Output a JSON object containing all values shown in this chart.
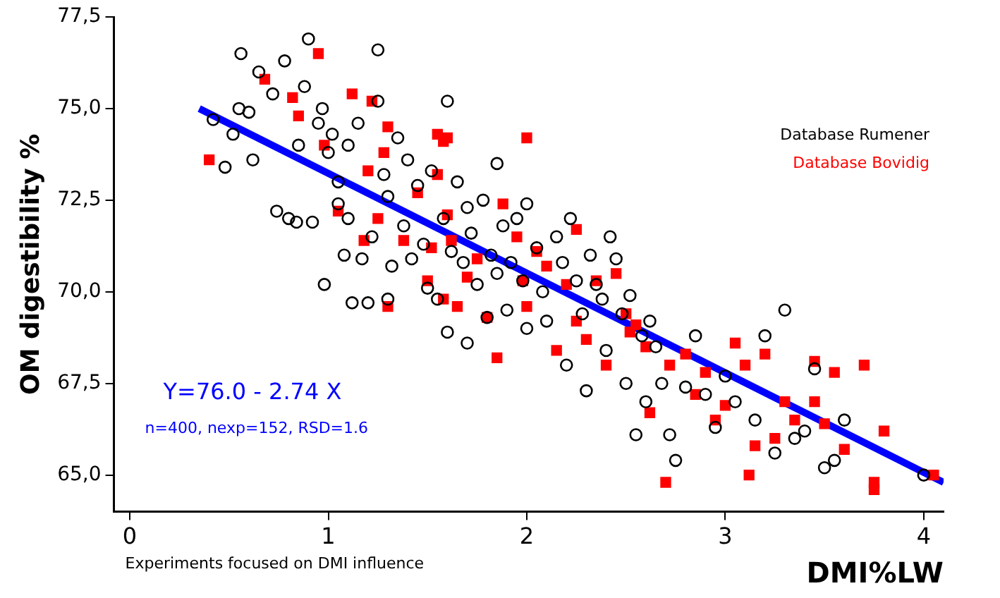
{
  "chart_data": {
    "type": "scatter",
    "xlabel": "DMI%LW",
    "ylabel": "OM digestibility %",
    "xlim": [
      -0.08,
      4.1
    ],
    "xticks": [
      0,
      1,
      2,
      3,
      4
    ],
    "ylim": [
      64.0,
      77.5
    ],
    "yticks": [
      {
        "value": 65,
        "label": "65,0"
      },
      {
        "value": 67.5,
        "label": "67,5"
      },
      {
        "value": 70,
        "label": "70,0"
      },
      {
        "value": 72.5,
        "label": "72,5"
      },
      {
        "value": 75,
        "label": "75,0"
      },
      {
        "value": 77.5,
        "label": "77,5"
      }
    ],
    "grid": false,
    "legend": "top right",
    "annotations": [
      "Y=76.0 - 2.74 X",
      "n=400, nexp=152, RSD=1.6",
      "Experiments focused on DMI influence"
    ],
    "series": [
      {
        "name": "Database Rumener",
        "color": "#000000",
        "marker": "circle",
        "x": [
          0.42,
          0.48,
          0.52,
          0.55,
          0.56,
          0.6,
          0.62,
          0.65,
          0.72,
          0.74,
          0.78,
          0.8,
          0.84,
          0.85,
          0.88,
          0.9,
          0.92,
          0.95,
          0.97,
          1.0,
          1.02,
          1.05,
          1.05,
          1.08,
          1.1,
          1.12,
          1.15,
          1.17,
          1.2,
          1.22,
          1.25,
          1.25,
          1.28,
          1.3,
          1.32,
          1.35,
          1.38,
          1.4,
          1.42,
          1.45,
          1.48,
          1.5,
          1.52,
          1.55,
          1.58,
          1.6,
          1.6,
          1.62,
          1.65,
          1.68,
          1.7,
          1.72,
          1.75,
          1.78,
          1.8,
          1.82,
          1.85,
          1.88,
          1.9,
          1.92,
          1.95,
          1.98,
          2.0,
          2.0,
          2.05,
          2.08,
          2.1,
          2.15,
          2.18,
          2.2,
          2.22,
          2.25,
          2.28,
          2.3,
          2.32,
          2.35,
          2.38,
          2.4,
          2.42,
          2.45,
          2.48,
          2.5,
          2.52,
          2.55,
          2.58,
          2.6,
          2.62,
          2.65,
          2.68,
          2.72,
          2.75,
          2.8,
          2.85,
          2.9,
          2.95,
          3.0,
          3.05,
          3.15,
          3.2,
          3.3,
          3.35,
          3.4,
          3.45,
          3.5,
          3.55,
          3.6,
          3.25,
          4.0,
          1.1,
          1.3,
          1.7,
          1.85,
          0.98
        ],
        "values": [
          74.7,
          73.4,
          74.3,
          75.0,
          76.5,
          74.9,
          73.6,
          76.0,
          75.4,
          72.2,
          76.3,
          72.0,
          71.9,
          74.0,
          75.6,
          76.9,
          71.9,
          74.6,
          75.0,
          73.8,
          74.3,
          72.4,
          73.0,
          71.0,
          72.0,
          69.7,
          74.6,
          70.9,
          69.7,
          71.5,
          76.6,
          75.2,
          73.2,
          72.6,
          70.7,
          74.2,
          71.8,
          73.6,
          70.9,
          72.9,
          71.3,
          70.1,
          73.3,
          69.8,
          72.0,
          75.2,
          68.9,
          71.1,
          73.0,
          70.8,
          68.6,
          71.6,
          70.2,
          72.5,
          69.3,
          71.0,
          70.5,
          71.8,
          69.5,
          70.8,
          72.0,
          70.3,
          69.0,
          72.4,
          71.2,
          70.0,
          69.2,
          71.5,
          70.8,
          68.0,
          72.0,
          70.3,
          69.4,
          67.3,
          71.0,
          70.2,
          69.8,
          68.4,
          71.5,
          70.9,
          69.4,
          67.5,
          69.9,
          66.1,
          68.8,
          67.0,
          69.2,
          68.5,
          67.5,
          66.1,
          65.4,
          67.4,
          68.8,
          67.2,
          66.3,
          67.7,
          67.0,
          66.5,
          68.8,
          69.5,
          66.0,
          66.2,
          67.9,
          65.2,
          65.4,
          66.5,
          65.6,
          65.0,
          74.0,
          69.8,
          72.3,
          73.5,
          70.2
        ]
      },
      {
        "name": "Database Bovidig",
        "color": "#ff0000",
        "marker": "square",
        "x": [
          0.4,
          0.68,
          0.82,
          0.85,
          0.95,
          0.98,
          1.05,
          1.12,
          1.18,
          1.2,
          1.22,
          1.25,
          1.28,
          1.3,
          1.3,
          1.38,
          1.45,
          1.5,
          1.52,
          1.55,
          1.58,
          1.6,
          1.62,
          1.65,
          1.7,
          1.58,
          1.75,
          1.8,
          1.85,
          1.88,
          1.95,
          1.98,
          2.0,
          2.05,
          2.1,
          2.15,
          2.2,
          2.25,
          2.25,
          2.3,
          2.35,
          2.4,
          2.45,
          2.5,
          2.52,
          2.55,
          2.6,
          2.62,
          2.7,
          2.72,
          2.8,
          2.85,
          2.9,
          2.95,
          3.0,
          3.05,
          3.1,
          3.12,
          3.15,
          3.2,
          3.25,
          3.3,
          3.35,
          3.45,
          3.45,
          3.5,
          3.55,
          3.6,
          3.7,
          3.75,
          3.75,
          3.8,
          4.05,
          2.0,
          1.55,
          1.6
        ],
        "values": [
          73.6,
          75.8,
          75.3,
          74.8,
          76.5,
          74.0,
          72.2,
          75.4,
          71.4,
          73.3,
          75.2,
          72.0,
          73.8,
          69.6,
          74.5,
          71.4,
          72.7,
          70.3,
          71.2,
          73.2,
          74.1,
          72.1,
          71.4,
          69.6,
          70.4,
          69.8,
          70.9,
          69.3,
          68.2,
          72.4,
          71.5,
          70.3,
          69.6,
          71.1,
          70.7,
          68.4,
          70.2,
          69.2,
          71.7,
          68.7,
          70.3,
          68.0,
          70.5,
          69.4,
          68.9,
          69.1,
          68.5,
          66.7,
          64.8,
          68.0,
          68.3,
          67.2,
          67.8,
          66.5,
          66.9,
          68.6,
          68.0,
          65.0,
          65.8,
          68.3,
          66.0,
          67.0,
          66.5,
          68.1,
          67.0,
          66.4,
          67.8,
          65.7,
          68.0,
          64.8,
          64.6,
          66.2,
          65.0,
          74.2,
          74.3,
          74.2
        ]
      },
      {
        "type": "line",
        "color": "#0000ff",
        "marker": "none",
        "x": [
          0.35,
          4.1
        ],
        "values": [
          75.0,
          64.8
        ]
      }
    ]
  }
}
